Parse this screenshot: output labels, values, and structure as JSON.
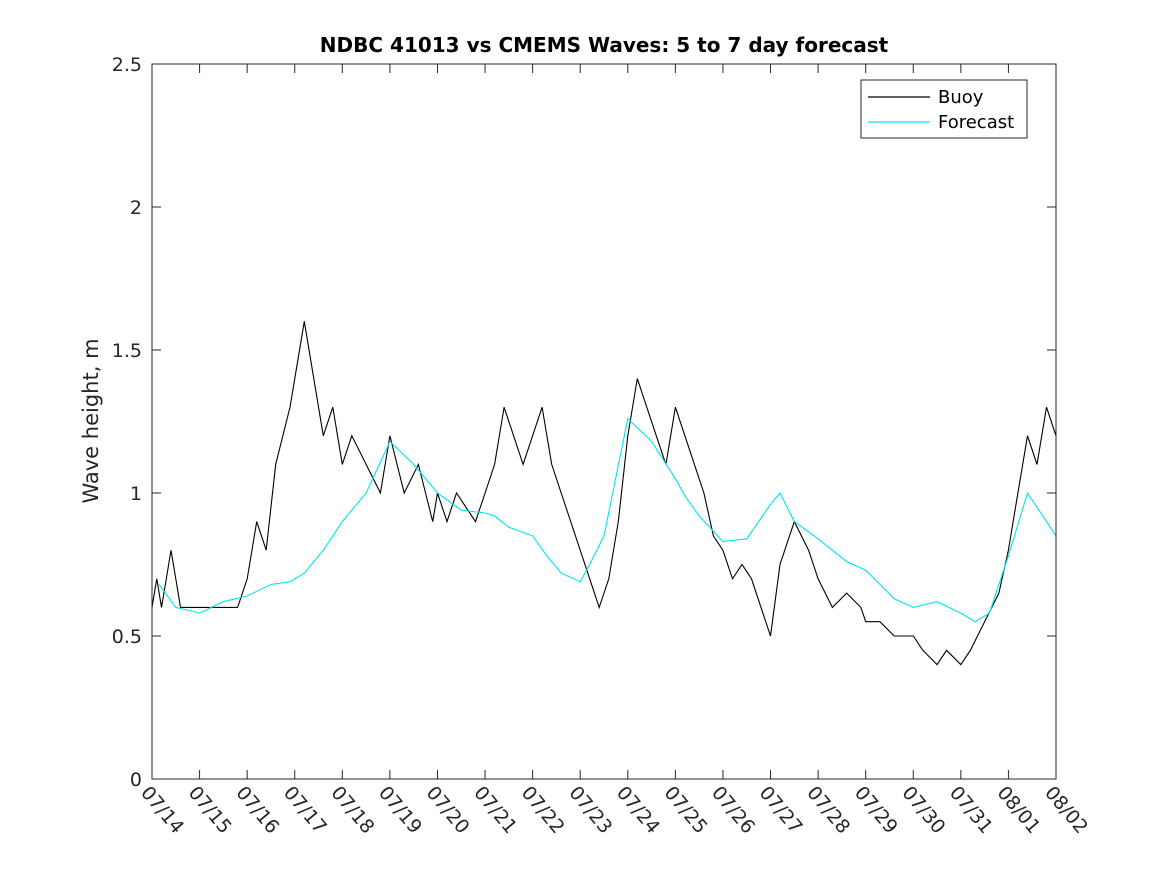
{
  "chart_data": {
    "type": "line",
    "title": "NDBC 41013 vs CMEMS Waves: 5 to 7 day forecast",
    "xlabel": "",
    "ylabel": "Wave height, m",
    "xlim": [
      0,
      19
    ],
    "ylim": [
      0,
      2.5
    ],
    "yticks": [
      0,
      0.5,
      1,
      1.5,
      2,
      2.5
    ],
    "ytick_labels": [
      "0",
      "0.5",
      "1",
      "1.5",
      "2",
      "2.5"
    ],
    "xtick_labels": [
      "07/14",
      "07/15",
      "07/16",
      "07/17",
      "07/18",
      "07/19",
      "07/20",
      "07/21",
      "07/22",
      "07/23",
      "07/24",
      "07/25",
      "07/26",
      "07/27",
      "07/28",
      "07/29",
      "07/30",
      "07/31",
      "08/01",
      "08/02"
    ],
    "x_units": "days since 07/14",
    "grid": false,
    "legend": {
      "position": "top-right",
      "entries": [
        {
          "name": "Buoy",
          "color": "#000000"
        },
        {
          "name": "Forecast",
          "color": "#00e5ee"
        }
      ]
    },
    "series": [
      {
        "name": "Buoy",
        "color": "#000000",
        "x": [
          0,
          0.1,
          0.2,
          0.3,
          0.4,
          0.5,
          0.6,
          0.8,
          1.0,
          1.2,
          1.5,
          1.8,
          2.0,
          2.2,
          2.4,
          2.6,
          2.9,
          3.2,
          3.4,
          3.6,
          3.8,
          4.0,
          4.2,
          4.5,
          4.8,
          5.0,
          5.3,
          5.6,
          5.9,
          6.0,
          6.2,
          6.4,
          6.6,
          6.8,
          7.0,
          7.2,
          7.4,
          7.6,
          7.8,
          8.0,
          8.2,
          8.4,
          8.6,
          8.8,
          9.0,
          9.2,
          9.4,
          9.6,
          9.8,
          10.0,
          10.2,
          10.4,
          10.6,
          10.8,
          11.0,
          11.2,
          11.4,
          11.6,
          11.8,
          12.0,
          12.2,
          12.4,
          12.6,
          12.8,
          13.0,
          13.2,
          13.5,
          13.8,
          14.0,
          14.3,
          14.6,
          14.9,
          15.0,
          15.3,
          15.6,
          15.9,
          16.0,
          16.2,
          16.5,
          16.7,
          17.0,
          17.2,
          17.5,
          17.8,
          18.0,
          18.2,
          18.4,
          18.6,
          18.8,
          19.0
        ],
        "y": [
          0.6,
          0.7,
          0.6,
          0.7,
          0.8,
          0.7,
          0.6,
          0.6,
          0.6,
          0.6,
          0.6,
          0.6,
          0.7,
          0.9,
          0.8,
          1.1,
          1.3,
          1.6,
          1.4,
          1.2,
          1.3,
          1.1,
          1.2,
          1.1,
          1.0,
          1.2,
          1.0,
          1.1,
          0.9,
          1.0,
          0.9,
          1.0,
          0.95,
          0.9,
          1.0,
          1.1,
          1.3,
          1.2,
          1.1,
          1.2,
          1.3,
          1.1,
          1.0,
          0.9,
          0.8,
          0.7,
          0.6,
          0.7,
          0.9,
          1.2,
          1.4,
          1.3,
          1.2,
          1.1,
          1.3,
          1.2,
          1.1,
          1.0,
          0.85,
          0.8,
          0.7,
          0.75,
          0.7,
          0.6,
          0.5,
          0.75,
          0.9,
          0.8,
          0.7,
          0.6,
          0.65,
          0.6,
          0.55,
          0.55,
          0.5,
          0.5,
          0.5,
          0.45,
          0.4,
          0.45,
          0.4,
          0.45,
          0.55,
          0.65,
          0.8,
          1.0,
          1.2,
          1.1,
          1.3,
          1.2
        ]
      },
      {
        "name": "Forecast",
        "color": "#00e5ee",
        "x": [
          0.15,
          0.5,
          1.0,
          1.5,
          2.0,
          2.5,
          2.9,
          3.2,
          3.6,
          4.0,
          4.5,
          5.0,
          5.5,
          6.0,
          6.5,
          7.0,
          7.2,
          7.5,
          8.0,
          8.3,
          8.6,
          9.0,
          9.2,
          9.5,
          10.0,
          10.5,
          11.0,
          11.2,
          11.5,
          12.0,
          12.5,
          13.0,
          13.2,
          13.5,
          14.0,
          14.3,
          14.6,
          15.0,
          15.3,
          15.6,
          16.0,
          16.5,
          17.0,
          17.3,
          17.6,
          18.0,
          18.4,
          18.8,
          19.0
        ],
        "y": [
          0.68,
          0.6,
          0.58,
          0.62,
          0.64,
          0.68,
          0.69,
          0.72,
          0.8,
          0.9,
          1.0,
          1.18,
          1.1,
          1.0,
          0.94,
          0.93,
          0.92,
          0.88,
          0.85,
          0.78,
          0.72,
          0.69,
          0.75,
          0.85,
          1.26,
          1.18,
          1.05,
          0.99,
          0.92,
          0.83,
          0.84,
          0.96,
          1.0,
          0.9,
          0.84,
          0.8,
          0.76,
          0.73,
          0.68,
          0.63,
          0.6,
          0.62,
          0.58,
          0.55,
          0.58,
          0.78,
          1.0,
          0.9,
          0.85
        ]
      }
    ]
  }
}
